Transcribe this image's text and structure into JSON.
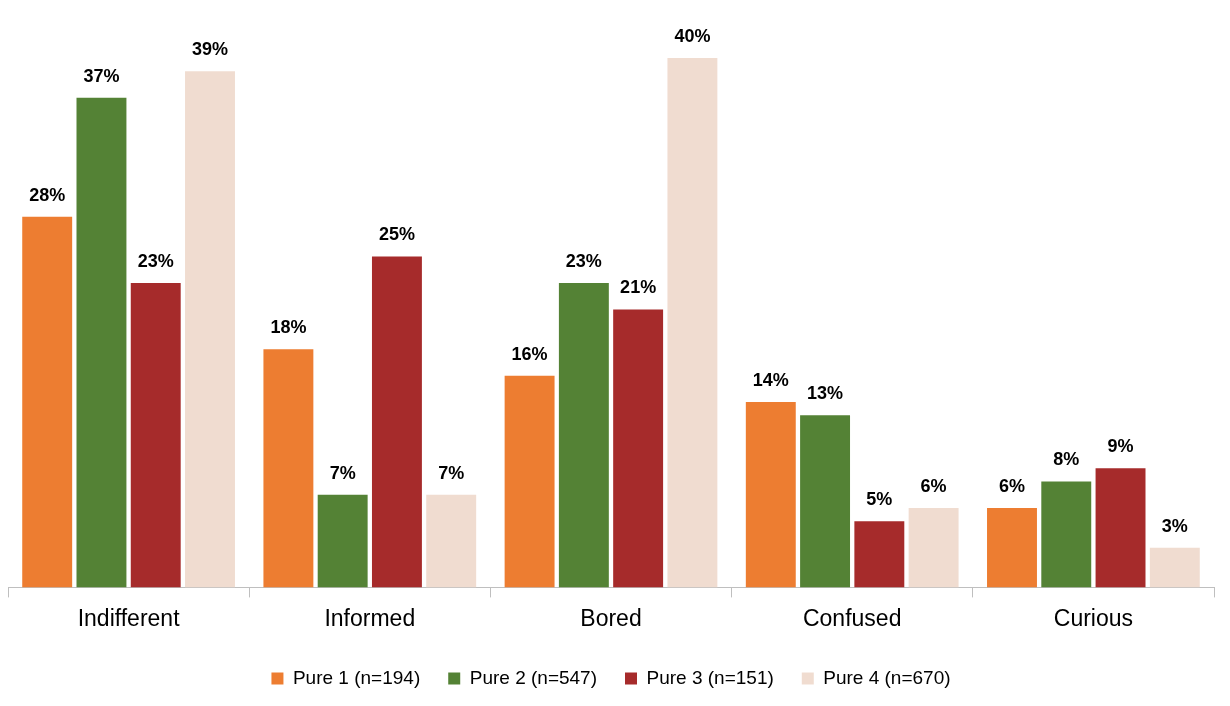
{
  "chart_data": {
    "type": "bar",
    "categories": [
      "Indifferent",
      "Informed",
      "Bored",
      "Confused",
      "Curious"
    ],
    "series": [
      {
        "name": "Pure 1 (n=194)",
        "color": "#ed7d31",
        "values": [
          28,
          18,
          16,
          14,
          6
        ],
        "value_labels": [
          "28%",
          "18%",
          "16%",
          "14%",
          "6%"
        ]
      },
      {
        "name": "Pure 2 (n=547)",
        "color": "#548235",
        "values": [
          37,
          7,
          23,
          13,
          8
        ],
        "value_labels": [
          "37%",
          "7%",
          "23%",
          "13%",
          "8%"
        ]
      },
      {
        "name": "Pure 3 (n=151)",
        "color": "#a62b2b",
        "values": [
          23,
          25,
          21,
          5,
          9
        ],
        "value_labels": [
          "23%",
          "25%",
          "21%",
          "5%",
          "9%"
        ]
      },
      {
        "name": "Pure 4 (n=670)",
        "color": "#f0dcd0",
        "values": [
          39,
          7,
          40,
          6,
          3
        ],
        "value_labels": [
          "39%",
          "7%",
          "40%",
          "6%",
          "3%"
        ]
      }
    ],
    "legend": "bottom",
    "grid": false
  }
}
